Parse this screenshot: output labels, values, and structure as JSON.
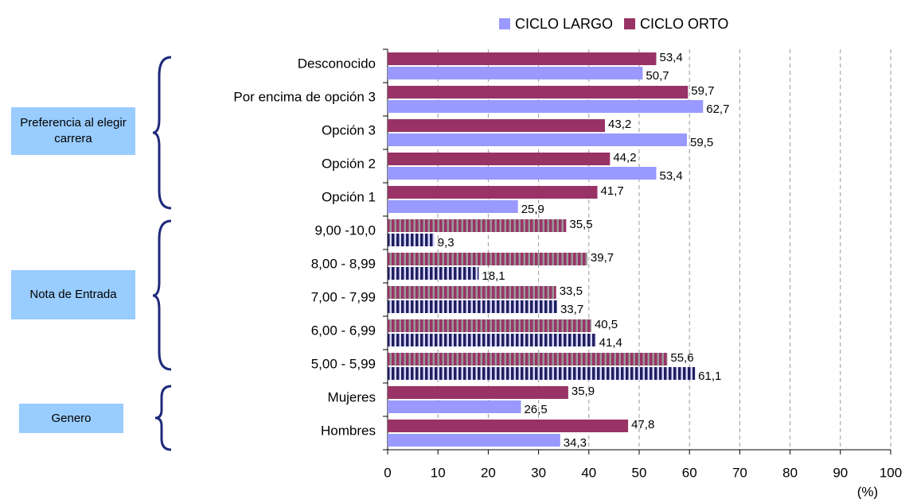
{
  "chart_data": {
    "type": "bar",
    "orientation": "horizontal",
    "categories": [
      "Desconocido",
      "Por encima de opción 3",
      "Opción 3",
      "Opción 2",
      "Opción 1",
      "9,00 -10,0",
      "8,00 - 8,99",
      "7,00 - 7,99",
      "6,00 - 6,99",
      "5,00 - 5,99",
      "Mujeres",
      "Hombres"
    ],
    "series": [
      {
        "name": "CICLO LARGO",
        "color": "#9999ff",
        "label_color": "#000080",
        "values": [
          50.7,
          62.7,
          59.5,
          53.4,
          25.9,
          9.3,
          18.1,
          33.7,
          41.4,
          61.1,
          26.5,
          34.3
        ],
        "value_labels": [
          "50,7",
          "62,7",
          "59,5",
          "53,4",
          "25,9",
          "9,3",
          "18,1",
          "33,7",
          "41,4",
          "61,1",
          "26,5",
          "34,3"
        ]
      },
      {
        "name": "CICLO ORTO",
        "color": "#993366",
        "label_color": "#800060",
        "values": [
          53.4,
          59.7,
          43.2,
          44.2,
          41.7,
          35.5,
          39.7,
          33.5,
          40.5,
          55.6,
          35.9,
          47.8
        ],
        "value_labels": [
          "53,4",
          "59,7",
          "43,2",
          "44,2",
          "41,7",
          "35,5",
          "39,7",
          "33,5",
          "40,5",
          "55,6",
          "35,9",
          "47,8"
        ]
      }
    ],
    "groups": [
      "Preferencia al elegir carrera",
      "Nota de Entrada",
      "Genero"
    ],
    "x_unit_label": "(%)",
    "xlim": [
      0,
      100
    ],
    "xticks": [
      0,
      10,
      20,
      30,
      40,
      50,
      60,
      70,
      80,
      90,
      100
    ],
    "grid": true,
    "legend": "top"
  }
}
